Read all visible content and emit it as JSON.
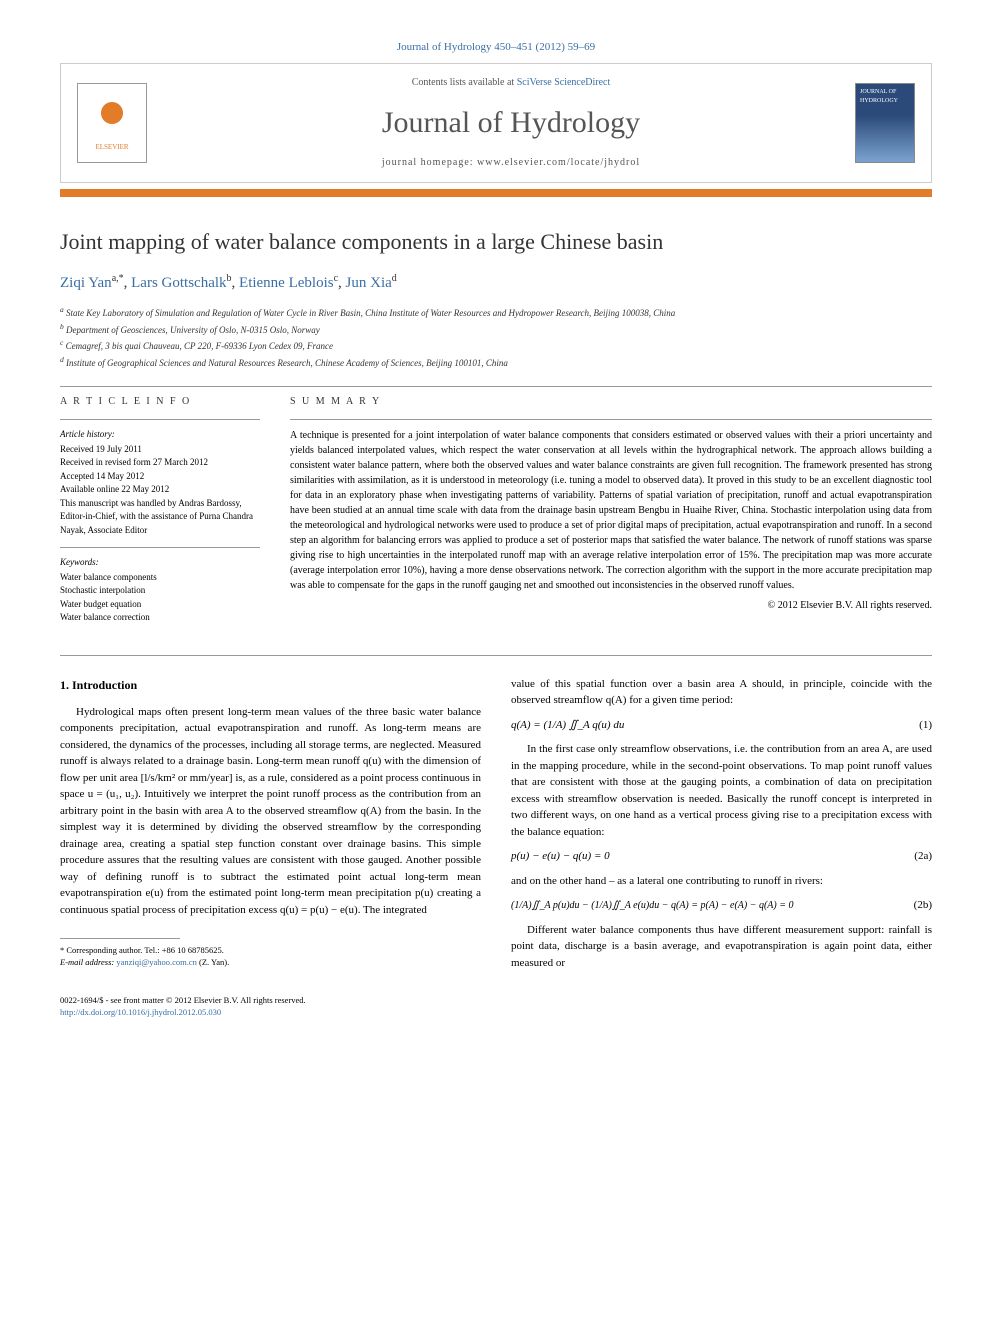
{
  "header": {
    "journal_ref": "Journal of Hydrology 450–451 (2012) 59–69",
    "contents_pre": "Contents lists available at ",
    "contents_link": "SciVerse ScienceDirect",
    "journal_name": "Journal of Hydrology",
    "homepage_pre": "journal homepage: ",
    "homepage_url": "www.elsevier.com/locate/jhydrol",
    "publisher": "ELSEVIER",
    "cover_label": "JOURNAL OF HYDROLOGY"
  },
  "title": "Joint mapping of water balance components in a large Chinese basin",
  "authors": [
    {
      "name": "Ziqi Yan",
      "sup": "a,*"
    },
    {
      "name": "Lars Gottschalk",
      "sup": "b"
    },
    {
      "name": "Etienne Leblois",
      "sup": "c"
    },
    {
      "name": "Jun Xia",
      "sup": "d"
    }
  ],
  "affiliations": [
    {
      "sup": "a",
      "text": "State Key Laboratory of Simulation and Regulation of Water Cycle in River Basin, China Institute of Water Resources and Hydropower Research, Beijing 100038, China"
    },
    {
      "sup": "b",
      "text": "Department of Geosciences, University of Oslo, N-0315 Oslo, Norway"
    },
    {
      "sup": "c",
      "text": "Cemagref, 3 bis quai Chauveau, CP 220, F-69336 Lyon Cedex 09, France"
    },
    {
      "sup": "d",
      "text": "Institute of Geographical Sciences and Natural Resources Research, Chinese Academy of Sciences, Beijing 100101, China"
    }
  ],
  "article_info": {
    "heading": "A R T I C L E   I N F O",
    "history_label": "Article history:",
    "history": "Received 19 July 2011\nReceived in revised form 27 March 2012\nAccepted 14 May 2012\nAvailable online 22 May 2012\nThis manuscript was handled by Andras Bardossy, Editor-in-Chief, with the assistance of Purna Chandra Nayak, Associate Editor",
    "keywords_label": "Keywords:",
    "keywords": "Water balance components\nStochastic interpolation\nWater budget equation\nWater balance correction"
  },
  "summary": {
    "heading": "S U M M A R Y",
    "text": "A technique is presented for a joint interpolation of water balance components that considers estimated or observed values with their a priori uncertainty and yields balanced interpolated values, which respect the water conservation at all levels within the hydrographical network. The approach allows building a consistent water balance pattern, where both the observed values and water balance constraints are given full recognition. The framework presented has strong similarities with assimilation, as it is understood in meteorology (i.e. tuning a model to observed data). It proved in this study to be an excellent diagnostic tool for data in an exploratory phase when investigating patterns of variability. Patterns of spatial variation of precipitation, runoff and actual evapotranspiration have been studied at an annual time scale with data from the drainage basin upstream Bengbu in Huaihe River, China. Stochastic interpolation using data from the meteorological and hydrological networks were used to produce a set of prior digital maps of precipitation, actual evapotranspiration and runoff. In a second step an algorithm for balancing errors was applied to produce a set of posterior maps that satisfied the water balance. The network of runoff stations was sparse giving rise to high uncertainties in the interpolated runoff map with an average relative interpolation error of 15%. The precipitation map was more accurate (average interpolation error 10%), having a more dense observations network. The correction algorithm with the support in the more accurate precipitation map was able to compensate for the gaps in the runoff gauging net and smoothed out inconsistencies in the observed runoff values.",
    "copyright": "© 2012 Elsevier B.V. All rights reserved."
  },
  "body": {
    "section_1_heading": "1. Introduction",
    "left_para": "Hydrological maps often present long-term mean values of the three basic water balance components precipitation, actual evapotranspiration and runoff. As long-term means are considered, the dynamics of the processes, including all storage terms, are neglected. Measured runoff is always related to a drainage basin. Long-term mean runoff q(u) with the dimension of flow per unit area [l/s/km² or mm/year] is, as a rule, considered as a point process continuous in space u = (u₁, u₂). Intuitively we interpret the point runoff process as the contribution from an arbitrary point in the basin with area A to the observed streamflow q(A) from the basin. In the simplest way it is determined by dividing the observed streamflow by the corresponding drainage area, creating a spatial step function constant over drainage basins. This simple procedure assures that the resulting values are consistent with those gauged. Another possible way of defining runoff is to subtract the estimated point actual long-term mean evapotranspiration e(u) from the estimated point long-term mean precipitation p(u) creating a continuous spatial process of precipitation excess q(u) = p(u) − e(u). The integrated",
    "right_para_1": "value of this spatial function over a basin area A should, in principle, coincide with the observed streamflow q(A) for a given time period:",
    "eq1": "q(A) = (1/A) ∬_A q(u) du",
    "eq1_num": "(1)",
    "right_para_2": "In the first case only streamflow observations, i.e. the contribution from an area A, are used in the mapping procedure, while in the second-point observations. To map point runoff values that are consistent with those at the gauging points, a combination of data on precipitation excess with streamflow observation is needed. Basically the runoff concept is interpreted in two different ways, on one hand as a vertical process giving rise to a precipitation excess with the balance equation:",
    "eq2a": "p(u) − e(u) − q(u) = 0",
    "eq2a_num": "(2a)",
    "right_para_3": "and on the other hand – as a lateral one contributing to runoff in rivers:",
    "eq2b": "(1/A)∬_A p(u)du − (1/A)∬_A e(u)du − q(A) = p(A) − e(A) − q(A) = 0",
    "eq2b_num": "(2b)",
    "right_para_4": "Different water balance components thus have different measurement support: rainfall is point data, discharge is a basin average, and evapotranspiration is again point data, either measured or"
  },
  "footnote": {
    "corr_label": "* Corresponding author. Tel.: +86 10 68785625.",
    "email_label": "E-mail address:",
    "email": "yanziqi@yahoo.com.cn",
    "email_suffix": "(Z. Yan)."
  },
  "footer": {
    "left_line1": "0022-1694/$ - see front matter © 2012 Elsevier B.V. All rights reserved.",
    "left_line2": "http://dx.doi.org/10.1016/j.jhydrol.2012.05.030"
  },
  "colors": {
    "accent_orange": "#e37c29",
    "link_blue": "#3a6ea5",
    "text_gray": "#555555",
    "cover_blue": "#2b4a7a"
  }
}
